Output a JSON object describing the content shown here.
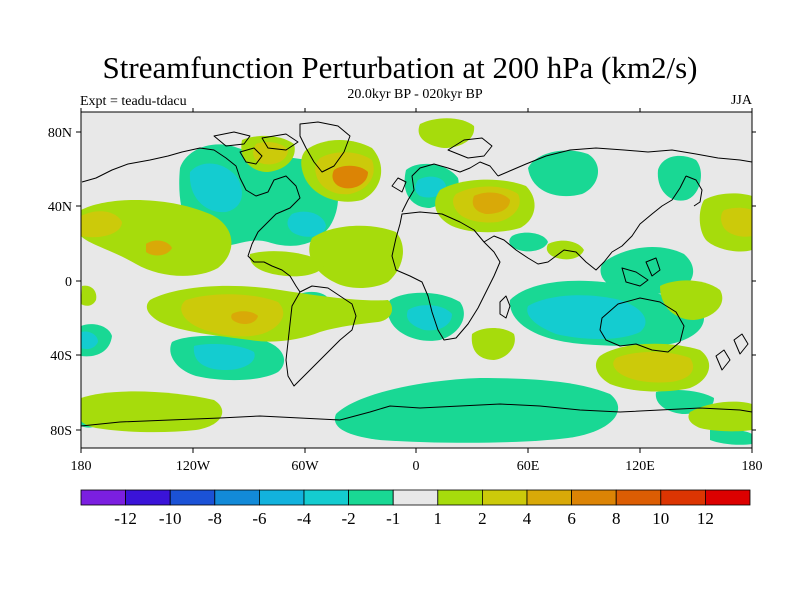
{
  "header": {
    "title": "Streamfunction Perturbation at 200 hPa (km2/s)",
    "subtitle": "20.0kyr BP - 020kyr BP",
    "experiment": "Expt = teadu-tdacu",
    "season": "JJA"
  },
  "axes": {
    "lat_labels": [
      "80N",
      "40N",
      "0",
      "40S",
      "80S"
    ],
    "lon_labels": [
      "180",
      "120W",
      "60W",
      "0",
      "60E",
      "120E",
      "180"
    ]
  },
  "colorbar": {
    "colors": [
      "#7b1fe0",
      "#3a13d8",
      "#1b52d6",
      "#128ad8",
      "#12b2dd",
      "#14ccd0",
      "#19d894",
      "#e8e8e8",
      "#a6dc0c",
      "#ccca0a",
      "#d9a908",
      "#dc8405",
      "#dc5d03",
      "#dc3502",
      "#dc0000"
    ],
    "labels": [
      "-12",
      "-10",
      "-8",
      "-6",
      "-4",
      "-2",
      "-1",
      "1",
      "2",
      "4",
      "6",
      "8",
      "10",
      "12"
    ]
  },
  "field_colors": {
    "background": "#e8e8e8",
    "neg1": "#19d894",
    "neg2": "#14ccd0",
    "pos1": "#a6dc0c",
    "pos2": "#ccca0a",
    "pos3": "#d9a908",
    "pos4": "#dc8405",
    "coast": "#000000"
  }
}
